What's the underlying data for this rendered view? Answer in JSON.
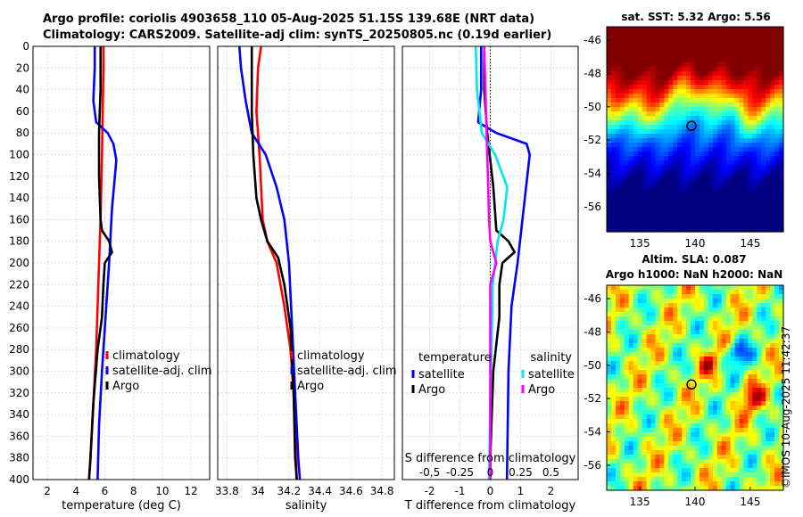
{
  "figure": {
    "title_line1": "Argo profile: coriolis 4903658_110 05-Aug-2025 51.15S 139.68E (NRT data)",
    "title_line2": "Climatology: CARS2009. Satellite-adj clim: synTS_20250805.nc (0.19d earlier)",
    "copyright": "©IMOS 10-Aug-2025 11:42:37"
  },
  "colors": {
    "climatology": "#ff0000",
    "satellite": "#0000ff",
    "argo": "#000000",
    "sal_satellite": "#00e8e8",
    "sal_argo": "#ff00ff"
  },
  "chart_data": [
    {
      "type": "line",
      "id": "temperature",
      "xlabel": "temperature (deg C)",
      "ylabel": "",
      "xlim": [
        1,
        13.3
      ],
      "ylim": [
        400,
        0
      ],
      "xticks": [
        2,
        4,
        6,
        8,
        10,
        12
      ],
      "yticks": [
        0,
        20,
        40,
        60,
        80,
        100,
        120,
        140,
        160,
        180,
        200,
        220,
        240,
        260,
        280,
        300,
        320,
        340,
        360,
        380,
        400
      ],
      "grid": true,
      "legend": {
        "position": "bottom-right",
        "entries": [
          "climatology",
          "satellite-adj. clim",
          "Argo"
        ]
      },
      "series": [
        {
          "name": "climatology",
          "color": "#ff0000",
          "points": [
            [
              5.9,
              0
            ],
            [
              5.9,
              20
            ],
            [
              5.85,
              60
            ],
            [
              5.8,
              100
            ],
            [
              5.7,
              160
            ],
            [
              5.6,
              200
            ],
            [
              5.5,
              240
            ],
            [
              5.4,
              280
            ],
            [
              5.2,
              330
            ],
            [
              5.0,
              380
            ],
            [
              4.9,
              400
            ]
          ]
        },
        {
          "name": "satellite-adj. clim",
          "color": "#0000ff",
          "points": [
            [
              5.3,
              0
            ],
            [
              5.3,
              20
            ],
            [
              5.2,
              50
            ],
            [
              5.4,
              70
            ],
            [
              6.2,
              80
            ],
            [
              6.6,
              90
            ],
            [
              6.8,
              105
            ],
            [
              6.5,
              150
            ],
            [
              6.3,
              200
            ],
            [
              6.0,
              260
            ],
            [
              5.8,
              300
            ],
            [
              5.6,
              350
            ],
            [
              5.5,
              400
            ]
          ]
        },
        {
          "name": "Argo",
          "color": "#000000",
          "points": [
            [
              5.7,
              0
            ],
            [
              5.7,
              40
            ],
            [
              5.6,
              80
            ],
            [
              5.6,
              120
            ],
            [
              5.7,
              160
            ],
            [
              5.8,
              170
            ],
            [
              6.3,
              180
            ],
            [
              6.5,
              190
            ],
            [
              6.0,
              200
            ],
            [
              5.9,
              220
            ],
            [
              5.8,
              250
            ],
            [
              5.5,
              280
            ],
            [
              5.2,
              330
            ],
            [
              5.0,
              380
            ],
            [
              4.9,
              400
            ]
          ]
        }
      ]
    },
    {
      "type": "line",
      "id": "salinity",
      "xlabel": "salinity",
      "ylabel": "",
      "xlim": [
        33.74,
        34.88
      ],
      "ylim": [
        400,
        0
      ],
      "xticks": [
        33.8,
        34.0,
        34.2,
        34.4,
        34.6,
        34.8
      ],
      "xticklabels": [
        "33.8",
        "34",
        "34.2",
        "34.4",
        "34.6",
        "34.8"
      ],
      "grid": true,
      "legend": {
        "position": "bottom-right",
        "entries": [
          "climatology",
          "satellite-adj. clim",
          "Argo"
        ]
      },
      "series": [
        {
          "name": "climatology",
          "color": "#ff0000",
          "points": [
            [
              34.02,
              0
            ],
            [
              34.0,
              20
            ],
            [
              33.99,
              60
            ],
            [
              34.01,
              100
            ],
            [
              34.03,
              160
            ],
            [
              34.06,
              180
            ],
            [
              34.12,
              200
            ],
            [
              34.17,
              240
            ],
            [
              34.21,
              280
            ],
            [
              34.23,
              320
            ],
            [
              34.24,
              360
            ],
            [
              34.25,
              400
            ]
          ]
        },
        {
          "name": "satellite-adj. clim",
          "color": "#0000ff",
          "points": [
            [
              33.88,
              0
            ],
            [
              33.89,
              20
            ],
            [
              33.92,
              50
            ],
            [
              33.96,
              80
            ],
            [
              34.05,
              100
            ],
            [
              34.12,
              130
            ],
            [
              34.17,
              160
            ],
            [
              34.2,
              200
            ],
            [
              34.22,
              260
            ],
            [
              34.24,
              320
            ],
            [
              34.26,
              380
            ],
            [
              34.27,
              400
            ]
          ]
        },
        {
          "name": "Argo",
          "color": "#000000",
          "points": [
            [
              33.96,
              0
            ],
            [
              33.96,
              60
            ],
            [
              33.97,
              100
            ],
            [
              33.99,
              140
            ],
            [
              34.02,
              160
            ],
            [
              34.06,
              180
            ],
            [
              34.13,
              195
            ],
            [
              34.17,
              220
            ],
            [
              34.21,
              260
            ],
            [
              34.23,
              320
            ],
            [
              34.24,
              380
            ],
            [
              34.25,
              400
            ]
          ]
        }
      ]
    },
    {
      "type": "line",
      "id": "difference",
      "xlabel": "T difference from climatology",
      "top_xlabel": "S difference from climatology",
      "xlim": [
        -2.9,
        2.9
      ],
      "ylim": [
        400,
        0
      ],
      "xticks": [
        -2,
        -1,
        0,
        1,
        2
      ],
      "top_xticks": [
        -0.5,
        -0.25,
        0,
        0.25,
        0.5
      ],
      "top_xticklabels": [
        "-0,5",
        "-0.25",
        "0",
        "0.25",
        "0.5"
      ],
      "top_xlim": [
        -0.725,
        0.725
      ],
      "grid": true,
      "legend": {
        "position": "bottom",
        "groups": [
          {
            "title": "temperature",
            "entries": [
              "satellite",
              "Argo"
            ]
          },
          {
            "title": "salinity",
            "entries": [
              "satellite",
              "Argo"
            ]
          }
        ]
      },
      "series": [
        {
          "name": "temperature satellite",
          "color": "#0000ff",
          "scale": "T",
          "points": [
            [
              -0.3,
              0
            ],
            [
              -0.3,
              40
            ],
            [
              -0.4,
              70
            ],
            [
              0.2,
              80
            ],
            [
              1.2,
              90
            ],
            [
              1.3,
              100
            ],
            [
              1.1,
              150
            ],
            [
              0.9,
              200
            ],
            [
              0.7,
              240
            ],
            [
              0.6,
              300
            ],
            [
              0.55,
              400
            ]
          ]
        },
        {
          "name": "temperature Argo",
          "color": "#000000",
          "scale": "T",
          "points": [
            [
              -0.2,
              0
            ],
            [
              -0.2,
              40
            ],
            [
              -0.1,
              80
            ],
            [
              0.1,
              130
            ],
            [
              0.2,
              170
            ],
            [
              0.6,
              180
            ],
            [
              0.8,
              190
            ],
            [
              0.4,
              200
            ],
            [
              0.3,
              220
            ],
            [
              0.3,
              250
            ],
            [
              0.1,
              300
            ],
            [
              0.0,
              380
            ],
            [
              0.0,
              400
            ]
          ]
        },
        {
          "name": "salinity satellite",
          "color": "#00e8e8",
          "scale": "S",
          "points": [
            [
              -0.12,
              0
            ],
            [
              -0.11,
              40
            ],
            [
              -0.07,
              80
            ],
            [
              0.04,
              100
            ],
            [
              0.14,
              130
            ],
            [
              0.11,
              160
            ],
            [
              0.06,
              180
            ],
            [
              0.02,
              220
            ],
            [
              0.01,
              280
            ],
            [
              0.0,
              320
            ],
            [
              -0.01,
              400
            ]
          ]
        },
        {
          "name": "salinity Argo",
          "color": "#ff00ff",
          "scale": "S",
          "points": [
            [
              -0.05,
              0
            ],
            [
              -0.04,
              40
            ],
            [
              -0.03,
              80
            ],
            [
              -0.02,
              120
            ],
            [
              -0.01,
              160
            ],
            [
              0.0,
              180
            ],
            [
              0.05,
              200
            ],
            [
              0.0,
              220
            ],
            [
              0.0,
              260
            ],
            [
              0.0,
              320
            ],
            [
              0.0,
              400
            ]
          ]
        }
      ]
    },
    {
      "type": "heatmap",
      "id": "sst_map",
      "title": "sat. SST: 5.32 Argo: 5.56",
      "xlim": [
        132,
        148
      ],
      "ylim": [
        -57.5,
        -45.2
      ],
      "xticks": [
        135,
        140,
        145
      ],
      "yticks": [
        -46,
        -48,
        -50,
        -52,
        -54,
        -56
      ],
      "marker": {
        "lon": 139.68,
        "lat": -51.15
      },
      "colorscale": "jet"
    },
    {
      "type": "heatmap",
      "id": "sla_map",
      "title_line1": "Altim. SLA: 0.087",
      "title_line2": "Argo h1000: NaN h2000: NaN",
      "xlim": [
        132,
        148
      ],
      "ylim": [
        -57.5,
        -45.2
      ],
      "xticks": [
        135,
        140,
        145
      ],
      "yticks": [
        -46,
        -48,
        -50,
        -52,
        -54,
        -56
      ],
      "marker": {
        "lon": 139.68,
        "lat": -51.15
      },
      "colorscale": "jet"
    }
  ]
}
